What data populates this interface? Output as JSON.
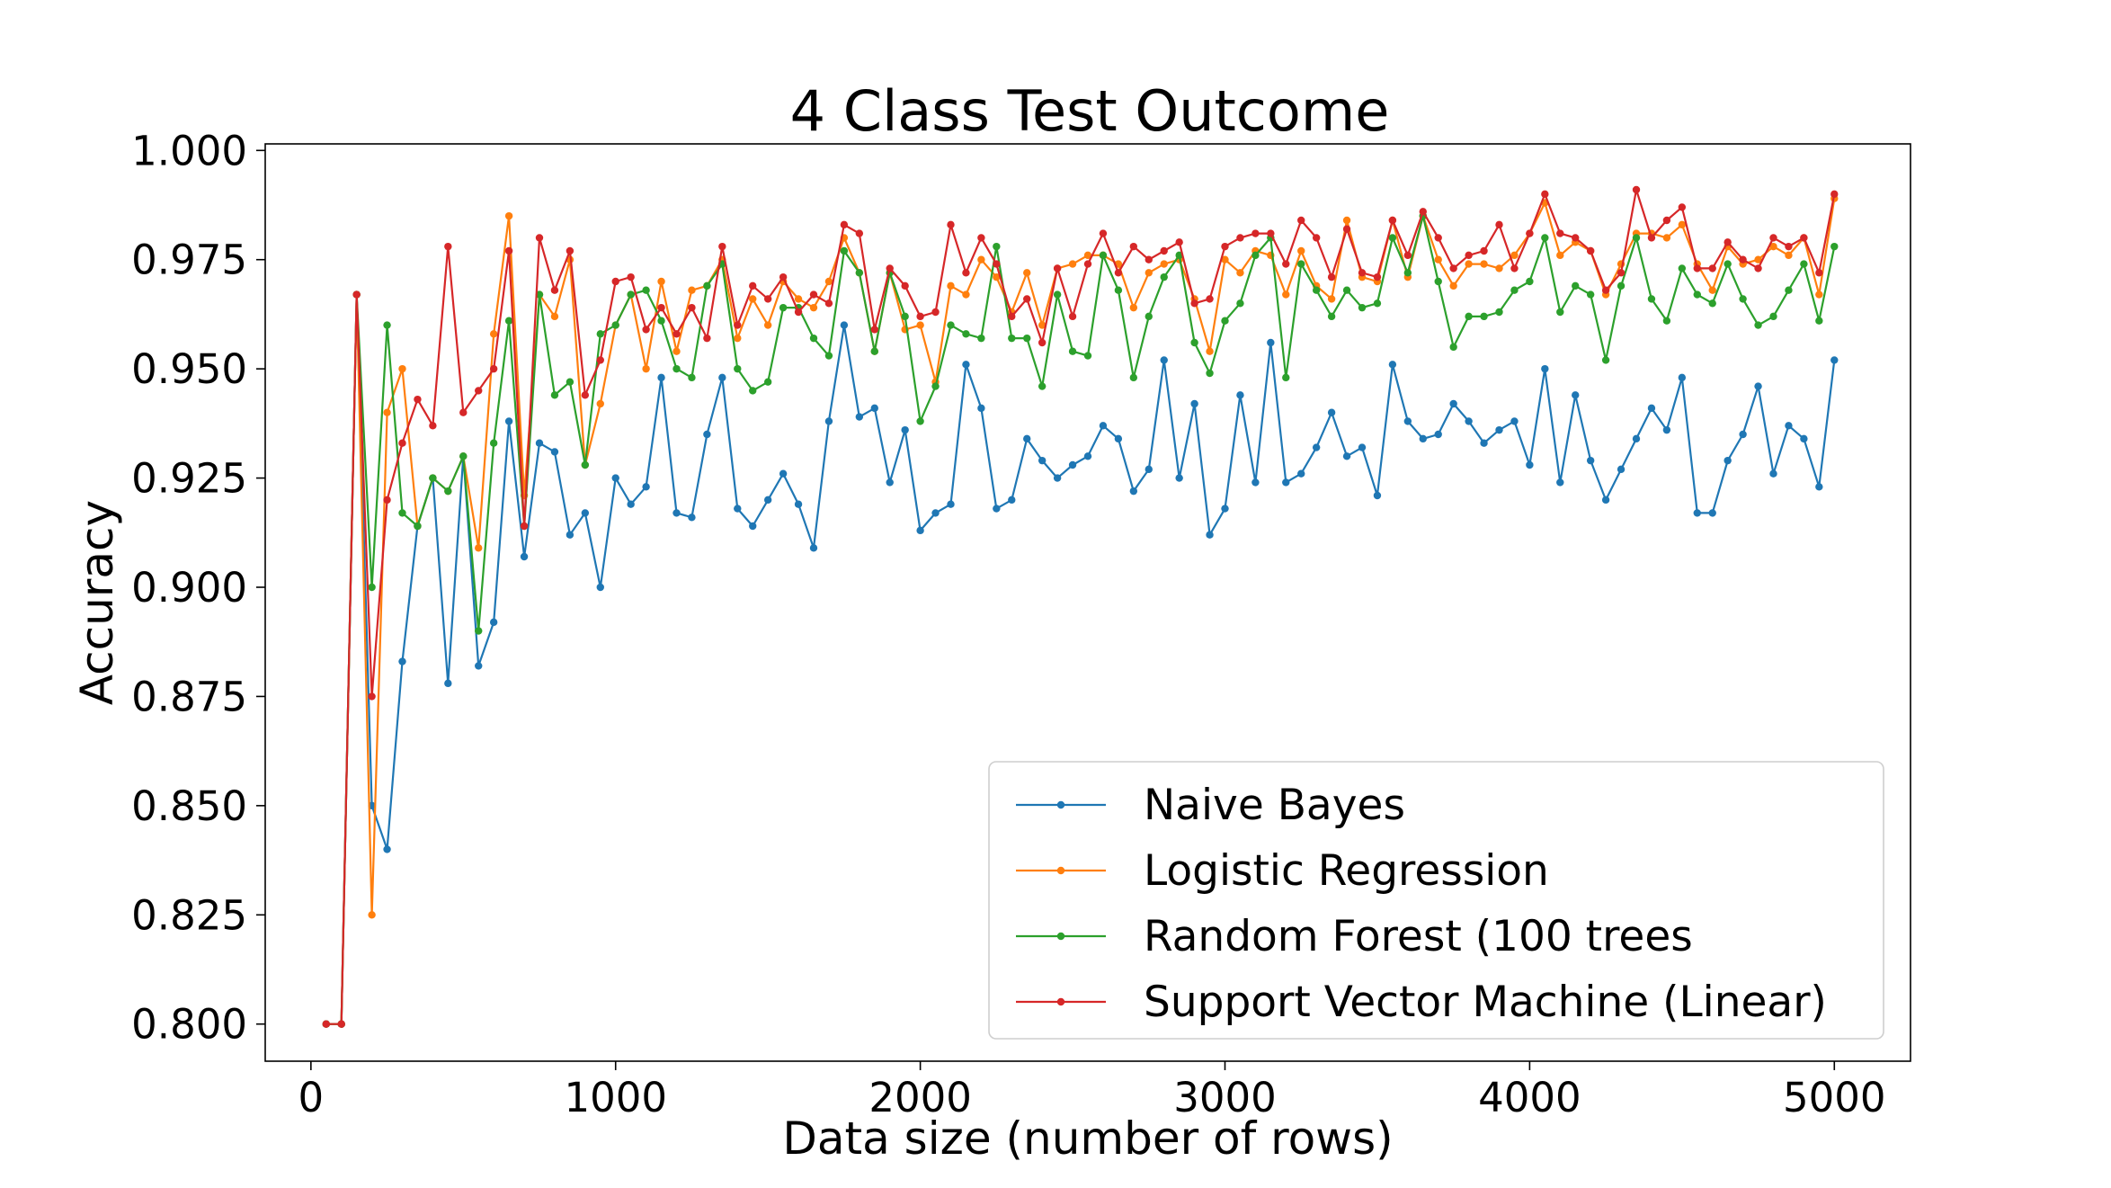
{
  "chart_data": {
    "type": "line",
    "title": "4 Class Test Outcome",
    "xlabel": "Data size (number of rows)",
    "ylabel": "Accuracy",
    "xlim": [
      -150,
      5250
    ],
    "ylim": [
      0.7915,
      1.0015
    ],
    "xticks": [
      0,
      1000,
      2000,
      3000,
      4000,
      5000
    ],
    "xtick_labels": [
      "0",
      "1000",
      "2000",
      "3000",
      "4000",
      "5000"
    ],
    "yticks": [
      0.8,
      0.825,
      0.85,
      0.875,
      0.9,
      0.925,
      0.95,
      0.975,
      1.0
    ],
    "ytick_labels": [
      "0.800",
      "0.825",
      "0.850",
      "0.875",
      "0.900",
      "0.925",
      "0.950",
      "0.975",
      "1.000"
    ],
    "grid": false,
    "legend_position": "lower-right",
    "x": [
      50,
      100,
      150,
      200,
      250,
      300,
      350,
      400,
      450,
      500,
      550,
      600,
      650,
      700,
      750,
      800,
      850,
      900,
      950,
      1000,
      1050,
      1100,
      1150,
      1200,
      1250,
      1300,
      1350,
      1400,
      1450,
      1500,
      1550,
      1600,
      1650,
      1700,
      1750,
      1800,
      1850,
      1900,
      1950,
      2000,
      2050,
      2100,
      2150,
      2200,
      2250,
      2300,
      2350,
      2400,
      2450,
      2500,
      2550,
      2600,
      2650,
      2700,
      2750,
      2800,
      2850,
      2900,
      2950,
      3000,
      3050,
      3100,
      3150,
      3200,
      3250,
      3300,
      3350,
      3400,
      3450,
      3500,
      3550,
      3600,
      3650,
      3700,
      3750,
      3800,
      3850,
      3900,
      3950,
      4000,
      4050,
      4100,
      4150,
      4200,
      4250,
      4300,
      4350,
      4400,
      4450,
      4500,
      4550,
      4600,
      4650,
      4700,
      4750,
      4800,
      4850,
      4900,
      4950,
      5000
    ],
    "series": [
      {
        "name": "Naive Bayes",
        "color": "#1f77b4",
        "values": [
          0.8,
          0.8,
          0.967,
          0.85,
          0.84,
          0.883,
          0.914,
          0.925,
          0.878,
          0.93,
          0.882,
          0.892,
          0.938,
          0.907,
          0.933,
          0.931,
          0.912,
          0.917,
          0.9,
          0.925,
          0.919,
          0.923,
          0.948,
          0.917,
          0.916,
          0.935,
          0.948,
          0.918,
          0.914,
          0.92,
          0.926,
          0.919,
          0.909,
          0.938,
          0.96,
          0.939,
          0.941,
          0.924,
          0.936,
          0.913,
          0.917,
          0.919,
          0.951,
          0.941,
          0.918,
          0.92,
          0.934,
          0.929,
          0.925,
          0.928,
          0.93,
          0.937,
          0.934,
          0.922,
          0.927,
          0.952,
          0.925,
          0.942,
          0.912,
          0.918,
          0.944,
          0.924,
          0.956,
          0.924,
          0.926,
          0.932,
          0.94,
          0.93,
          0.932,
          0.921,
          0.951,
          0.938,
          0.934,
          0.935,
          0.942,
          0.938,
          0.933,
          0.936,
          0.938,
          0.928,
          0.95,
          0.924,
          0.944,
          0.929,
          0.92,
          0.927,
          0.934,
          0.941,
          0.936,
          0.948,
          0.917,
          0.917,
          0.929,
          0.935,
          0.946,
          0.926,
          0.937,
          0.934,
          0.923,
          0.952
        ]
      },
      {
        "name": "Logistic Regression",
        "color": "#ff7f0e",
        "values": [
          0.8,
          0.8,
          0.967,
          0.825,
          0.94,
          0.95,
          0.914,
          0.925,
          0.922,
          0.93,
          0.909,
          0.958,
          0.985,
          0.921,
          0.967,
          0.962,
          0.975,
          0.928,
          0.942,
          0.96,
          0.967,
          0.95,
          0.97,
          0.954,
          0.968,
          0.969,
          0.975,
          0.957,
          0.966,
          0.96,
          0.97,
          0.966,
          0.964,
          0.97,
          0.98,
          0.972,
          0.954,
          0.972,
          0.959,
          0.96,
          0.947,
          0.969,
          0.967,
          0.975,
          0.971,
          0.963,
          0.972,
          0.96,
          0.973,
          0.974,
          0.976,
          0.976,
          0.974,
          0.964,
          0.972,
          0.974,
          0.975,
          0.966,
          0.954,
          0.975,
          0.972,
          0.977,
          0.976,
          0.967,
          0.977,
          0.969,
          0.966,
          0.984,
          0.971,
          0.97,
          0.984,
          0.971,
          0.985,
          0.975,
          0.969,
          0.974,
          0.974,
          0.973,
          0.976,
          0.981,
          0.988,
          0.976,
          0.979,
          0.977,
          0.967,
          0.974,
          0.981,
          0.981,
          0.98,
          0.983,
          0.974,
          0.968,
          0.978,
          0.974,
          0.975,
          0.978,
          0.976,
          0.98,
          0.967,
          0.989
        ]
      },
      {
        "name": "Random Forest (100 trees",
        "color": "#2ca02c",
        "values": [
          0.8,
          0.8,
          0.967,
          0.9,
          0.96,
          0.917,
          0.914,
          0.925,
          0.922,
          0.93,
          0.89,
          0.933,
          0.961,
          0.914,
          0.967,
          0.944,
          0.947,
          0.928,
          0.958,
          0.96,
          0.967,
          0.968,
          0.961,
          0.95,
          0.948,
          0.969,
          0.974,
          0.95,
          0.945,
          0.947,
          0.964,
          0.964,
          0.957,
          0.953,
          0.977,
          0.972,
          0.954,
          0.972,
          0.962,
          0.938,
          0.946,
          0.96,
          0.958,
          0.957,
          0.978,
          0.957,
          0.957,
          0.946,
          0.967,
          0.954,
          0.953,
          0.976,
          0.968,
          0.948,
          0.962,
          0.971,
          0.976,
          0.956,
          0.949,
          0.961,
          0.965,
          0.976,
          0.98,
          0.948,
          0.974,
          0.968,
          0.962,
          0.968,
          0.964,
          0.965,
          0.98,
          0.972,
          0.985,
          0.97,
          0.955,
          0.962,
          0.962,
          0.963,
          0.968,
          0.97,
          0.98,
          0.963,
          0.969,
          0.967,
          0.952,
          0.969,
          0.98,
          0.966,
          0.961,
          0.973,
          0.967,
          0.965,
          0.974,
          0.966,
          0.96,
          0.962,
          0.968,
          0.974,
          0.961,
          0.978
        ]
      },
      {
        "name": "Support Vector Machine (Linear)",
        "color": "#d62728",
        "values": [
          0.8,
          0.8,
          0.967,
          0.875,
          0.92,
          0.933,
          0.943,
          0.937,
          0.978,
          0.94,
          0.945,
          0.95,
          0.977,
          0.914,
          0.98,
          0.968,
          0.977,
          0.944,
          0.952,
          0.97,
          0.971,
          0.959,
          0.964,
          0.958,
          0.964,
          0.957,
          0.978,
          0.96,
          0.969,
          0.966,
          0.971,
          0.963,
          0.967,
          0.965,
          0.983,
          0.981,
          0.959,
          0.973,
          0.969,
          0.962,
          0.963,
          0.983,
          0.972,
          0.98,
          0.974,
          0.962,
          0.966,
          0.956,
          0.973,
          0.962,
          0.974,
          0.981,
          0.972,
          0.978,
          0.975,
          0.977,
          0.979,
          0.965,
          0.966,
          0.978,
          0.98,
          0.981,
          0.981,
          0.974,
          0.984,
          0.98,
          0.971,
          0.982,
          0.972,
          0.971,
          0.984,
          0.976,
          0.986,
          0.98,
          0.973,
          0.976,
          0.977,
          0.983,
          0.973,
          0.981,
          0.99,
          0.981,
          0.98,
          0.977,
          0.968,
          0.972,
          0.991,
          0.98,
          0.984,
          0.987,
          0.973,
          0.973,
          0.979,
          0.975,
          0.973,
          0.98,
          0.978,
          0.98,
          0.972,
          0.99
        ]
      }
    ]
  }
}
